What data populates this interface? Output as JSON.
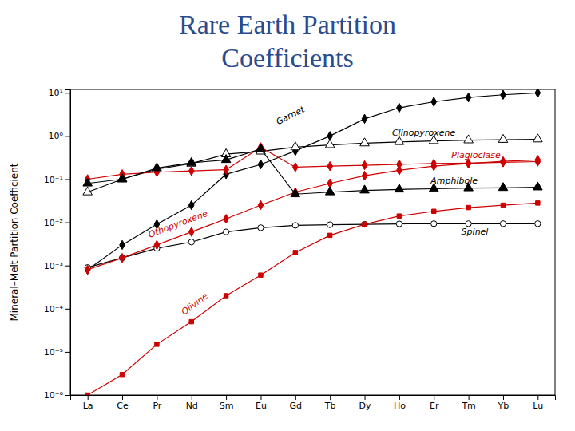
{
  "chart_data": {
    "type": "line",
    "title": [
      "Rare Earth Partition",
      "Coefficients"
    ],
    "ylabel": "Mineral–Melt Partition Coefficient",
    "categories": [
      "La",
      "Ce",
      "Pr",
      "Nd",
      "Sm",
      "Eu",
      "Gd",
      "Tb",
      "Dy",
      "Ho",
      "Er",
      "Tm",
      "Yb",
      "Lu"
    ],
    "log": "y",
    "grid": false,
    "ylim": [
      1e-06,
      12.0
    ],
    "yticks": [
      {
        "value": 1e-06,
        "label": "10⁻⁶"
      },
      {
        "value": 1e-05,
        "label": "10⁻⁵"
      },
      {
        "value": 0.0001,
        "label": "10⁻⁴"
      },
      {
        "value": 0.001,
        "label": "10⁻³"
      },
      {
        "value": 0.01,
        "label": "10⁻²"
      },
      {
        "value": 0.1,
        "label": "10⁻¹"
      },
      {
        "value": 1,
        "label": "10⁰"
      },
      {
        "value": 10,
        "label": "10¹"
      }
    ],
    "series": [
      {
        "name": "Garnet",
        "color": "black",
        "marker": "diamond",
        "values": [
          0.0008,
          0.003,
          0.009,
          0.025,
          0.13,
          0.22,
          0.45,
          1.0,
          2.5,
          4.5,
          6.2,
          7.8,
          9.0,
          10.0
        ]
      },
      {
        "name": "Clinopyroxene",
        "color": "black",
        "marker": "triangle-open",
        "values": [
          0.05,
          0.1,
          0.17,
          0.23,
          0.38,
          0.44,
          0.55,
          0.62,
          0.68,
          0.73,
          0.77,
          0.8,
          0.82,
          0.84
        ]
      },
      {
        "name": "Spinel",
        "color": "black",
        "marker": "circle-open",
        "values": [
          0.0009,
          0.0015,
          0.0025,
          0.0035,
          0.006,
          0.0075,
          0.0085,
          0.0088,
          0.009,
          0.0092,
          0.0093,
          0.0093,
          0.0093,
          0.0093
        ]
      },
      {
        "name": "Othopyroxene",
        "color": "#CC0000",
        "marker": "diamond",
        "values": [
          0.0008,
          0.0015,
          0.003,
          0.006,
          0.012,
          0.025,
          0.05,
          0.08,
          0.12,
          0.16,
          0.2,
          0.23,
          0.26,
          0.28
        ]
      },
      {
        "name": "Olivine",
        "color": "#CC0000",
        "marker": "square",
        "values": [
          1e-06,
          3e-06,
          1.5e-05,
          5e-05,
          0.0002,
          0.0006,
          0.002,
          0.005,
          0.009,
          0.014,
          0.018,
          0.022,
          0.025,
          0.028
        ]
      },
      {
        "name": "Plagioclase",
        "color": "#CC0000",
        "marker": "diamond",
        "values": [
          0.1,
          0.13,
          0.145,
          0.155,
          0.165,
          0.55,
          0.19,
          0.2,
          0.21,
          0.22,
          0.23,
          0.235,
          0.245,
          0.255
        ]
      },
      {
        "name": "Amphibole",
        "color": "black",
        "marker": "triangle",
        "values": [
          0.08,
          0.1,
          0.18,
          0.24,
          0.28,
          0.5,
          0.045,
          0.05,
          0.055,
          0.058,
          0.06,
          0.062,
          0.063,
          0.065
        ]
      }
    ]
  }
}
